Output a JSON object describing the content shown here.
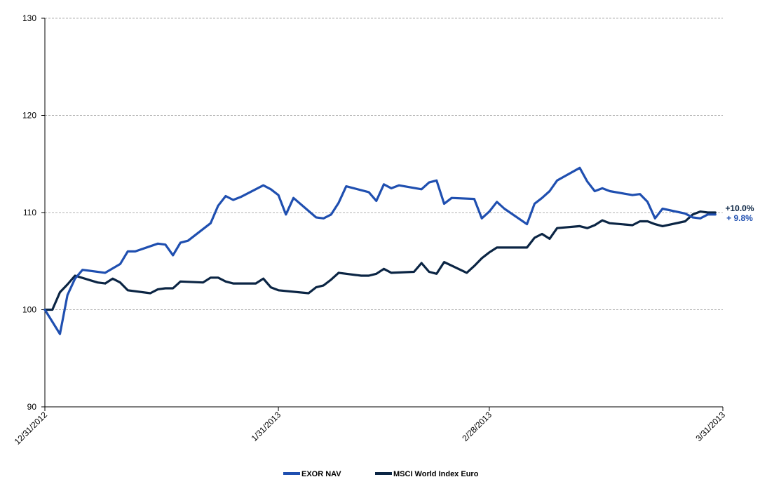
{
  "chart_data": {
    "type": "line",
    "title": "",
    "xlabel": "",
    "ylabel": "",
    "ylim": [
      90,
      130
    ],
    "yticks": [
      90,
      100,
      110,
      120,
      130
    ],
    "x_range": [
      "2012-12-31",
      "2013-03-31"
    ],
    "xticks": [
      {
        "date": "2012-12-31",
        "label": "12/31/2012"
      },
      {
        "date": "2013-01-31",
        "label": "1/31/2013"
      },
      {
        "date": "2013-02-28",
        "label": "2/28/2013"
      },
      {
        "date": "2013-03-31",
        "label": "3/31/2013"
      }
    ],
    "grid": "horizontal dashed",
    "legend_position": "bottom",
    "series": [
      {
        "name": "EXOR NAV",
        "color": "#1f4fb0",
        "end_label": "+ 9.8%",
        "points": [
          [
            "2012-12-31",
            100.0
          ],
          [
            "2013-01-02",
            97.5
          ],
          [
            "2013-01-03",
            101.5
          ],
          [
            "2013-01-04",
            103.2
          ],
          [
            "2013-01-05",
            104.1
          ],
          [
            "2013-01-08",
            103.8
          ],
          [
            "2013-01-10",
            104.7
          ],
          [
            "2013-01-11",
            106.0
          ],
          [
            "2013-01-12",
            106.0
          ],
          [
            "2013-01-15",
            106.8
          ],
          [
            "2013-01-16",
            106.7
          ],
          [
            "2013-01-17",
            105.6
          ],
          [
            "2013-01-18",
            106.9
          ],
          [
            "2013-01-19",
            107.1
          ],
          [
            "2013-01-22",
            108.9
          ],
          [
            "2013-01-23",
            110.7
          ],
          [
            "2013-01-24",
            111.7
          ],
          [
            "2013-01-25",
            111.3
          ],
          [
            "2013-01-26",
            111.6
          ],
          [
            "2013-01-29",
            112.8
          ],
          [
            "2013-01-30",
            112.4
          ],
          [
            "2013-01-31",
            111.8
          ],
          [
            "2013-02-01",
            109.8
          ],
          [
            "2013-02-02",
            111.5
          ],
          [
            "2013-02-05",
            109.5
          ],
          [
            "2013-02-06",
            109.4
          ],
          [
            "2013-02-07",
            109.8
          ],
          [
            "2013-02-08",
            111.0
          ],
          [
            "2013-02-09",
            112.7
          ],
          [
            "2013-02-12",
            112.1
          ],
          [
            "2013-02-13",
            111.2
          ],
          [
            "2013-02-14",
            112.9
          ],
          [
            "2013-02-15",
            112.5
          ],
          [
            "2013-02-16",
            112.8
          ],
          [
            "2013-02-19",
            112.4
          ],
          [
            "2013-02-20",
            113.1
          ],
          [
            "2013-02-21",
            113.3
          ],
          [
            "2013-02-22",
            110.9
          ],
          [
            "2013-02-23",
            111.5
          ],
          [
            "2013-02-26",
            111.4
          ],
          [
            "2013-02-27",
            109.4
          ],
          [
            "2013-02-28",
            110.1
          ],
          [
            "2013-03-01",
            111.1
          ],
          [
            "2013-03-02",
            110.4
          ],
          [
            "2013-03-05",
            108.8
          ],
          [
            "2013-03-06",
            110.9
          ],
          [
            "2013-03-07",
            111.5
          ],
          [
            "2013-03-08",
            112.2
          ],
          [
            "2013-03-09",
            113.3
          ],
          [
            "2013-03-12",
            114.6
          ],
          [
            "2013-03-13",
            113.2
          ],
          [
            "2013-03-14",
            112.2
          ],
          [
            "2013-03-15",
            112.5
          ],
          [
            "2013-03-16",
            112.2
          ],
          [
            "2013-03-19",
            111.8
          ],
          [
            "2013-03-20",
            111.9
          ],
          [
            "2013-03-21",
            111.1
          ],
          [
            "2013-03-22",
            109.4
          ],
          [
            "2013-03-23",
            110.4
          ],
          [
            "2013-03-26",
            109.9
          ],
          [
            "2013-03-27",
            109.5
          ],
          [
            "2013-03-28",
            109.4
          ],
          [
            "2013-03-29",
            109.8
          ],
          [
            "2013-03-30",
            109.8
          ]
        ]
      },
      {
        "name": "MSCI World Index Euro",
        "color": "#0b2544",
        "end_label": "+10.0%",
        "points": [
          [
            "2012-12-31",
            100.0
          ],
          [
            "2013-01-01",
            100.0
          ],
          [
            "2013-01-02",
            101.8
          ],
          [
            "2013-01-03",
            102.6
          ],
          [
            "2013-01-04",
            103.5
          ],
          [
            "2013-01-07",
            102.8
          ],
          [
            "2013-01-08",
            102.7
          ],
          [
            "2013-01-09",
            103.2
          ],
          [
            "2013-01-10",
            102.8
          ],
          [
            "2013-01-11",
            102.0
          ],
          [
            "2013-01-14",
            101.7
          ],
          [
            "2013-01-15",
            102.1
          ],
          [
            "2013-01-16",
            102.2
          ],
          [
            "2013-01-17",
            102.2
          ],
          [
            "2013-01-18",
            102.9
          ],
          [
            "2013-01-21",
            102.8
          ],
          [
            "2013-01-22",
            103.3
          ],
          [
            "2013-01-23",
            103.3
          ],
          [
            "2013-01-24",
            102.9
          ],
          [
            "2013-01-25",
            102.7
          ],
          [
            "2013-01-28",
            102.7
          ],
          [
            "2013-01-29",
            103.2
          ],
          [
            "2013-01-30",
            102.3
          ],
          [
            "2013-01-31",
            102.0
          ],
          [
            "2013-02-04",
            101.7
          ],
          [
            "2013-02-05",
            102.3
          ],
          [
            "2013-02-06",
            102.5
          ],
          [
            "2013-02-07",
            103.1
          ],
          [
            "2013-02-08",
            103.8
          ],
          [
            "2013-02-11",
            103.5
          ],
          [
            "2013-02-12",
            103.5
          ],
          [
            "2013-02-13",
            103.7
          ],
          [
            "2013-02-14",
            104.2
          ],
          [
            "2013-02-15",
            103.8
          ],
          [
            "2013-02-18",
            103.9
          ],
          [
            "2013-02-19",
            104.8
          ],
          [
            "2013-02-20",
            103.9
          ],
          [
            "2013-02-21",
            103.7
          ],
          [
            "2013-02-22",
            104.9
          ],
          [
            "2013-02-25",
            103.8
          ],
          [
            "2013-02-26",
            104.5
          ],
          [
            "2013-02-27",
            105.3
          ],
          [
            "2013-02-28",
            105.9
          ],
          [
            "2013-03-01",
            106.4
          ],
          [
            "2013-03-04",
            106.4
          ],
          [
            "2013-03-05",
            106.4
          ],
          [
            "2013-03-06",
            107.4
          ],
          [
            "2013-03-07",
            107.8
          ],
          [
            "2013-03-08",
            107.3
          ],
          [
            "2013-03-09",
            108.4
          ],
          [
            "2013-03-12",
            108.6
          ],
          [
            "2013-03-13",
            108.4
          ],
          [
            "2013-03-14",
            108.7
          ],
          [
            "2013-03-15",
            109.2
          ],
          [
            "2013-03-16",
            108.9
          ],
          [
            "2013-03-19",
            108.7
          ],
          [
            "2013-03-20",
            109.1
          ],
          [
            "2013-03-21",
            109.1
          ],
          [
            "2013-03-22",
            108.8
          ],
          [
            "2013-03-23",
            108.6
          ],
          [
            "2013-03-26",
            109.1
          ],
          [
            "2013-03-27",
            109.8
          ],
          [
            "2013-03-28",
            110.1
          ],
          [
            "2013-03-29",
            110.0
          ],
          [
            "2013-03-30",
            110.0
          ]
        ]
      }
    ]
  }
}
